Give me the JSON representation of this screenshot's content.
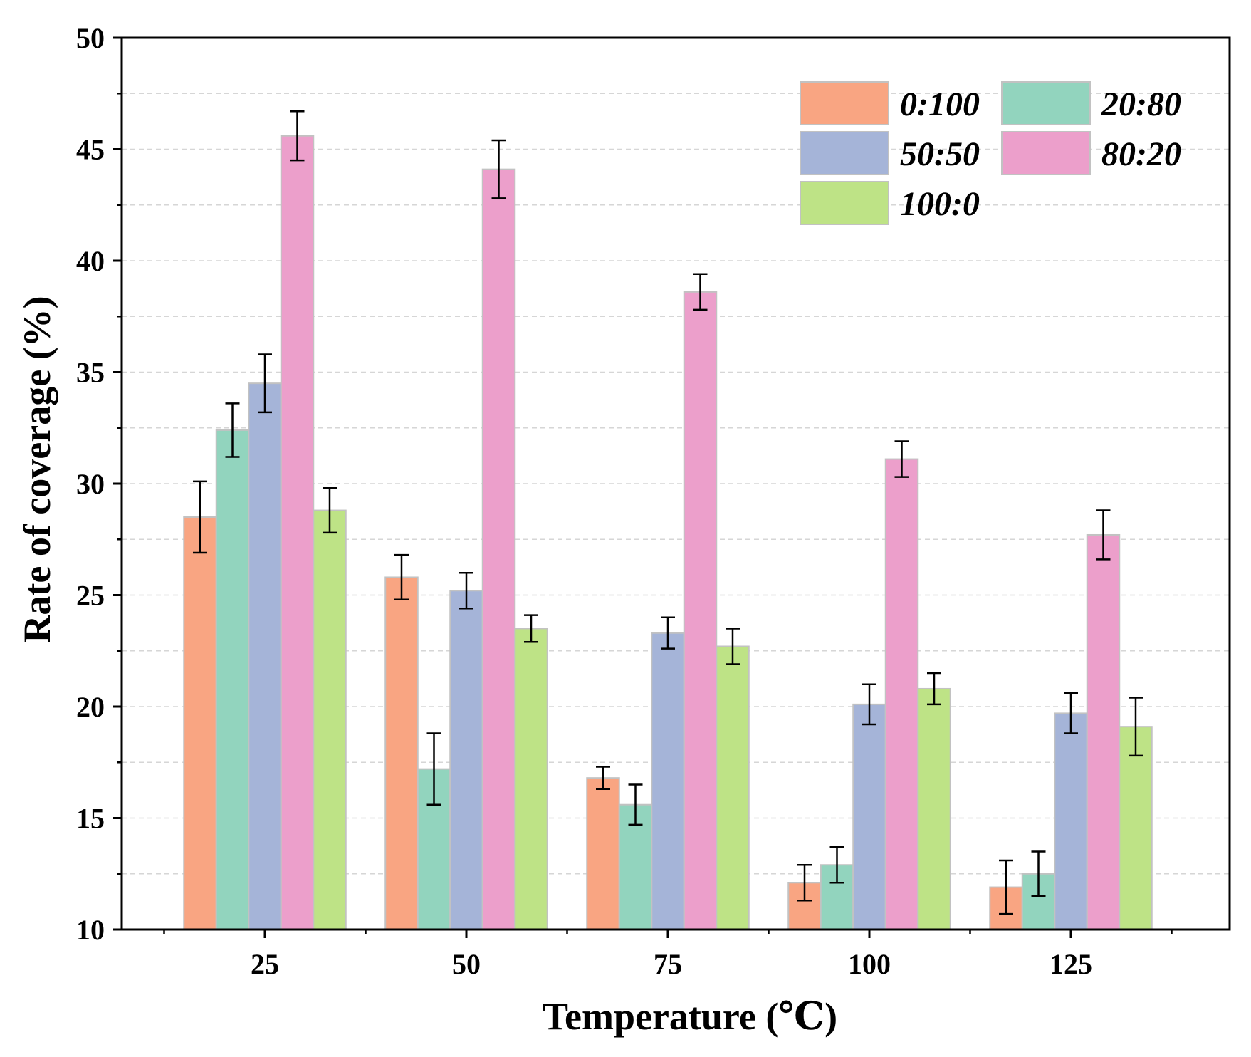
{
  "chart_data": {
    "type": "bar",
    "xlabel": "Temperature (℃)",
    "ylabel": "Rate of coverage (%)",
    "categories": [
      "25",
      "50",
      "75",
      "100",
      "125"
    ],
    "ylim": [
      10,
      50
    ],
    "yticks": [
      "10",
      "15",
      "20",
      "25",
      "30",
      "35",
      "40",
      "45",
      "50"
    ],
    "grid": "horizontal dashed",
    "legend_position": "top-right",
    "series": [
      {
        "name": "0:100",
        "color": "#F9A582",
        "values": [
          28.5,
          25.8,
          16.8,
          12.1,
          11.9
        ],
        "errors": [
          1.6,
          1.0,
          0.5,
          0.8,
          1.2
        ]
      },
      {
        "name": "20:80",
        "color": "#92D4BE",
        "values": [
          32.4,
          17.2,
          15.6,
          12.9,
          12.5
        ],
        "errors": [
          1.2,
          1.6,
          0.9,
          0.8,
          1.0
        ]
      },
      {
        "name": "50:50",
        "color": "#A5B4D8",
        "values": [
          34.5,
          25.2,
          23.3,
          20.1,
          19.7
        ],
        "errors": [
          1.3,
          0.8,
          0.7,
          0.9,
          0.9
        ]
      },
      {
        "name": "80:20",
        "color": "#EC9FCB",
        "values": [
          45.6,
          44.1,
          38.6,
          31.1,
          27.7
        ],
        "errors": [
          1.1,
          1.3,
          0.8,
          0.8,
          1.1
        ]
      },
      {
        "name": "100:0",
        "color": "#BEE386",
        "values": [
          28.8,
          23.5,
          22.7,
          20.8,
          19.1
        ],
        "errors": [
          1.0,
          0.6,
          0.8,
          0.7,
          1.3
        ]
      }
    ]
  }
}
